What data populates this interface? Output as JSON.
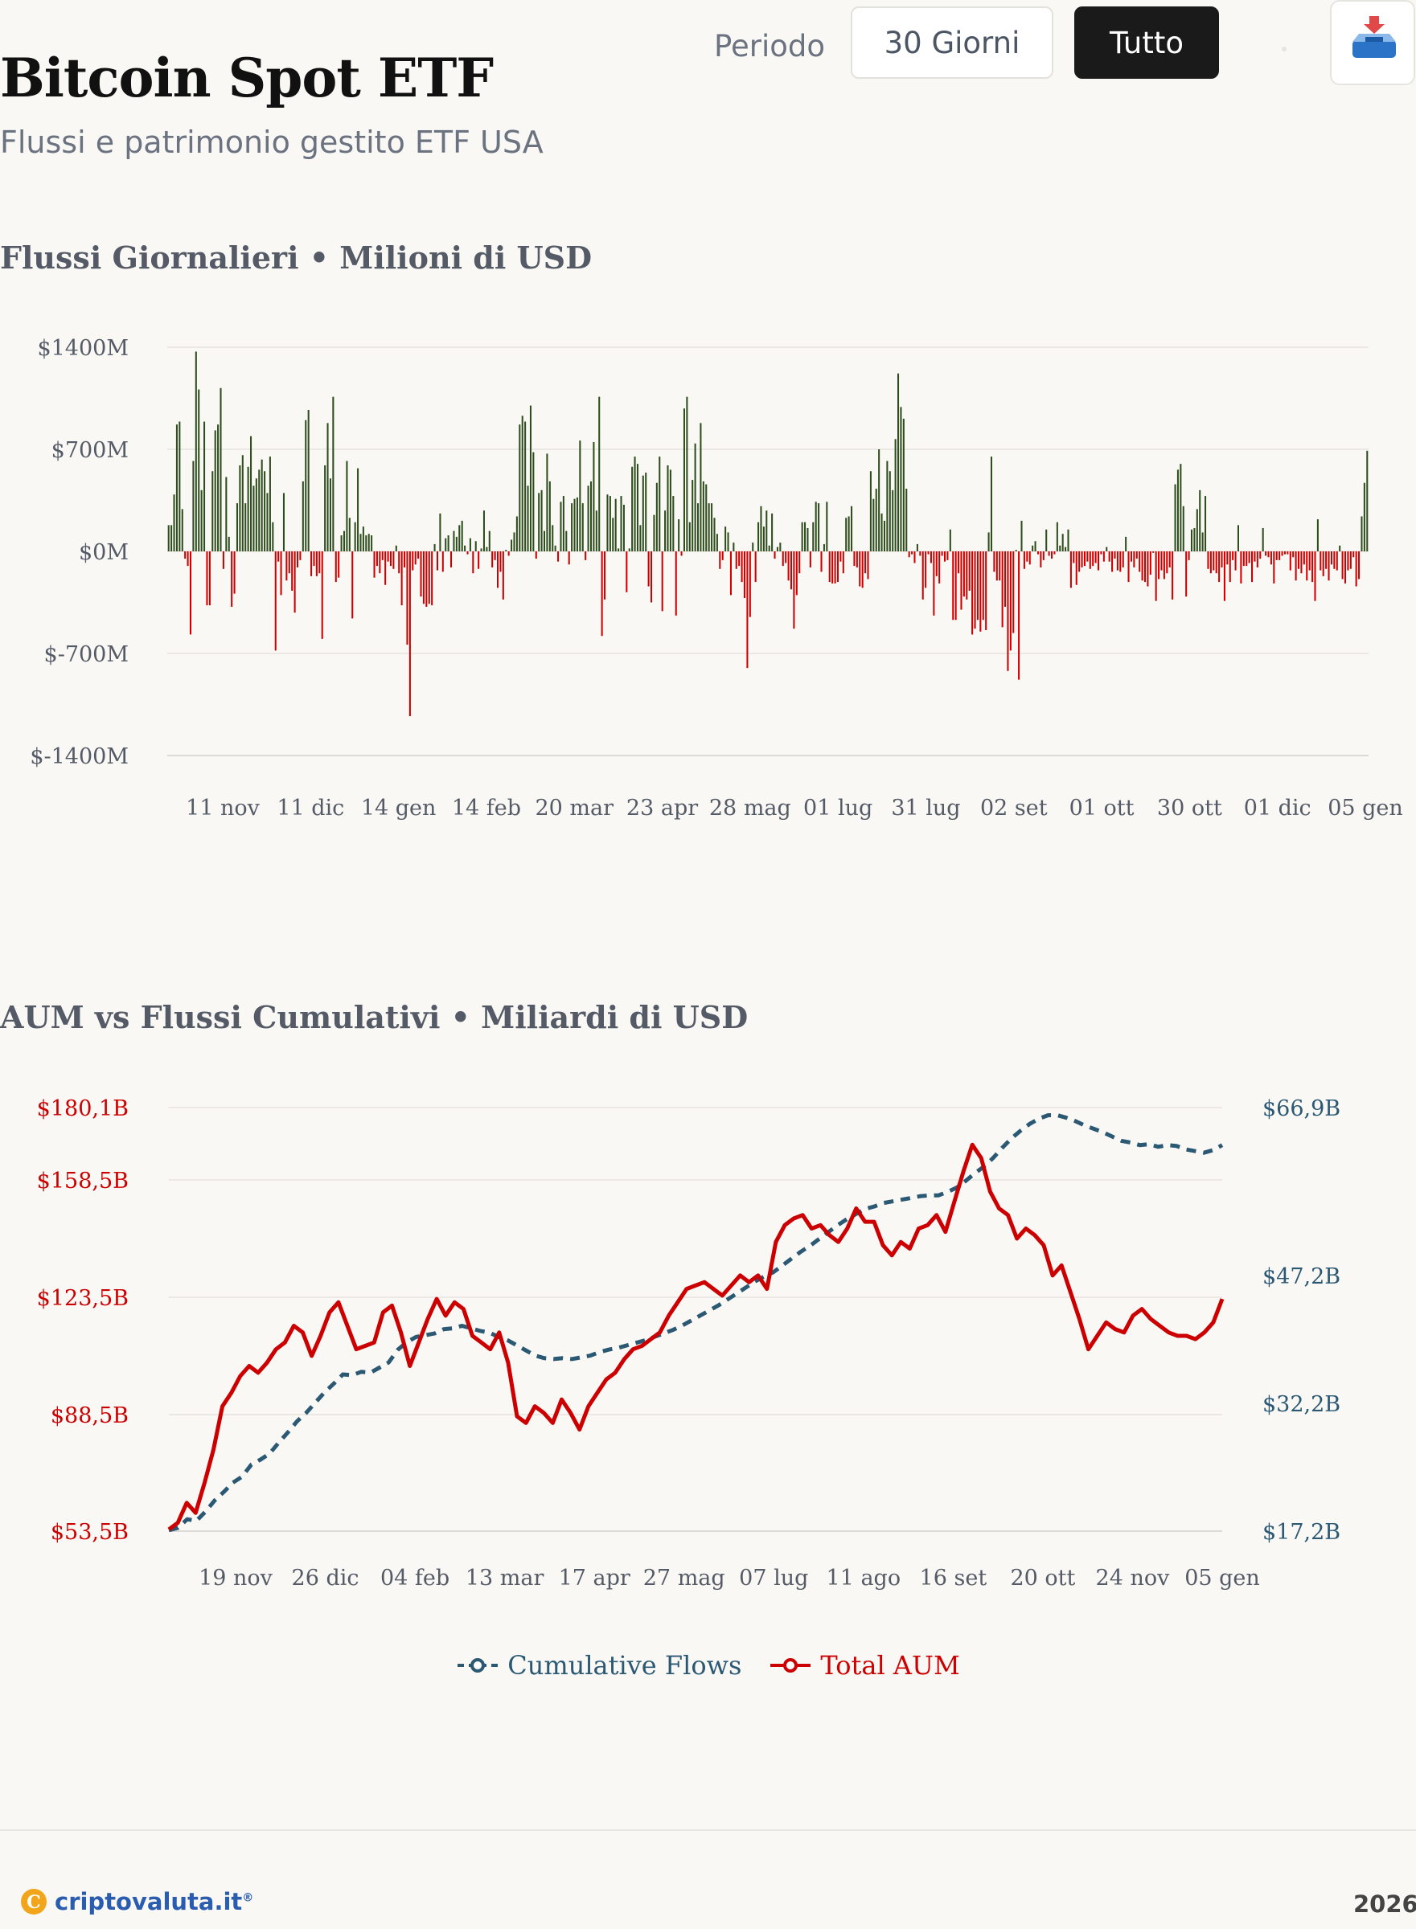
{
  "header": {
    "title": "Bitcoin Spot ETF",
    "subtitle": "Flussi e patrimonio gestito ETF USA",
    "period_label": "Periodo",
    "buttons": {
      "thirty_days": "30 Giorni",
      "all": "Tutto"
    },
    "selected_period": "Tutto"
  },
  "colors": {
    "inflow": "#2e4d1c",
    "outflow": "#cc0000",
    "aum": "#cc0000",
    "flows": "#2b5873",
    "background": "#f9f8f5"
  },
  "footer": {
    "brand": "criptovaluta.it",
    "year": "2026"
  },
  "chart_data": [
    {
      "type": "bar",
      "title": "Flussi Giornalieri • Milioni di USD",
      "ylim": [
        -1400,
        1400
      ],
      "yticks": [
        "$1400M",
        "$700M",
        "$0M",
        "$-700M",
        "$-1400M"
      ],
      "ytick_values": [
        1400,
        700,
        0,
        -700,
        -1400
      ],
      "xticks": [
        "11 nov",
        "11 dic",
        "14 gen",
        "14 feb",
        "20 mar",
        "23 apr",
        "28 mag",
        "01 lug",
        "31 lug",
        "02 set",
        "01 ott",
        "30 ott",
        "01 dic",
        "05 gen"
      ],
      "values": [
        180,
        180,
        390,
        870,
        890,
        290,
        -50,
        -100,
        -570,
        620,
        1370,
        1110,
        420,
        890,
        -370,
        -370,
        550,
        830,
        870,
        1120,
        -120,
        510,
        100,
        -380,
        -290,
        330,
        590,
        660,
        330,
        580,
        790,
        450,
        500,
        560,
        630,
        550,
        400,
        650,
        200,
        -680,
        -70,
        -300,
        400,
        -200,
        -150,
        -270,
        -420,
        -110,
        -60,
        480,
        900,
        970,
        -170,
        -100,
        -170,
        -150,
        -600,
        590,
        880,
        500,
        1060,
        -210,
        -180,
        110,
        140,
        620,
        230,
        -460,
        200,
        570,
        120,
        170,
        110,
        120,
        110,
        -180,
        -100,
        -150,
        -60,
        -230,
        -70,
        -100,
        -120,
        40,
        -150,
        -370,
        -110,
        -640,
        -1130,
        -130,
        -90,
        -50,
        -310,
        -360,
        -380,
        -360,
        -370,
        50,
        -130,
        260,
        -140,
        90,
        110,
        -110,
        140,
        100,
        180,
        210,
        40,
        -20,
        90,
        -150,
        70,
        -120,
        20,
        280,
        30,
        140,
        -110,
        -60,
        -250,
        -140,
        -330,
        10,
        -30,
        80,
        130,
        240,
        870,
        930,
        890,
        450,
        1000,
        680,
        -50,
        400,
        420,
        140,
        670,
        480,
        180,
        40,
        -70,
        340,
        380,
        140,
        -90,
        330,
        360,
        370,
        760,
        330,
        -60,
        450,
        480,
        750,
        280,
        1060,
        -580,
        -330,
        390,
        380,
        230,
        360,
        20,
        380,
        320,
        -280,
        20,
        580,
        650,
        600,
        180,
        520,
        540,
        -240,
        -350,
        250,
        470,
        650,
        -410,
        280,
        590,
        560,
        380,
        -440,
        220,
        -30,
        980,
        1060,
        200,
        490,
        740,
        330,
        880,
        480,
        460,
        330,
        330,
        230,
        120,
        -120,
        -60,
        170,
        130,
        -300,
        60,
        -120,
        -100,
        -210,
        -320,
        -800,
        -450,
        60,
        -210,
        200,
        310,
        170,
        280,
        40,
        260,
        -50,
        30,
        60,
        -100,
        -80,
        -200,
        -260,
        -530,
        -300,
        -150,
        200,
        200,
        160,
        -110,
        200,
        340,
        330,
        -140,
        50,
        340,
        -210,
        -220,
        -220,
        -210,
        -70,
        -150,
        230,
        240,
        310,
        -100,
        -110,
        -240,
        -250,
        -150,
        -190,
        550,
        360,
        430,
        700,
        260,
        210,
        620,
        550,
        420,
        770,
        1220,
        990,
        910,
        430,
        -40,
        -20,
        -80,
        50,
        -30,
        -330,
        -250,
        -20,
        -80,
        -440,
        -170,
        -220,
        -30,
        -70,
        -60,
        150,
        -470,
        -470,
        -150,
        -400,
        -310,
        -330,
        -270,
        -570,
        -530,
        -470,
        -550,
        -470,
        -540,
        130,
        650,
        -140,
        -200,
        -200,
        -520,
        -380,
        -820,
        -680,
        -560,
        10,
        -880,
        210,
        -120,
        -70,
        -90,
        40,
        70,
        -20,
        -110,
        -60,
        150,
        -30,
        -50,
        -20,
        200,
        40,
        120,
        30,
        150,
        -250,
        -80,
        -230,
        -140,
        -110,
        -100,
        -70,
        -120,
        -100,
        -80,
        -130,
        -20,
        -70,
        30,
        -70,
        -140,
        -50,
        -130,
        -140,
        -110,
        100,
        -210,
        -70,
        -110,
        -50,
        -140,
        -200,
        -210,
        -240,
        -160,
        -10,
        -340,
        -190,
        -130,
        -190,
        -150,
        -110,
        -330,
        460,
        560,
        600,
        310,
        -310,
        -60,
        150,
        160,
        290,
        420,
        130,
        380,
        -120,
        -150,
        -130,
        -150,
        -210,
        -110,
        -340,
        -90,
        -210,
        -60,
        -130,
        180,
        -220,
        -100,
        -100,
        -80,
        -210,
        -70,
        -110,
        -50,
        160,
        -30,
        -40,
        -90,
        -220,
        -60,
        -60,
        -30,
        -20,
        -20,
        -130,
        -40,
        -200,
        -120,
        -150,
        -90,
        -200,
        -130,
        -210,
        -340,
        220,
        -130,
        -170,
        -120,
        -200,
        -90,
        -120,
        -130,
        40,
        -190,
        -220,
        -130,
        -120,
        -40,
        -240,
        -190,
        240,
        470,
        690
      ]
    },
    {
      "type": "line",
      "title": "AUM vs Flussi Cumulativi • Miliardi di USD",
      "xticks": [
        "19 nov",
        "26 dic",
        "04 feb",
        "13 mar",
        "17 apr",
        "27 mag",
        "07 lug",
        "11 ago",
        "16 set",
        "20 ott",
        "24 nov",
        "05 gen"
      ],
      "y_left": {
        "ticks": [
          "$180,1B",
          "$158,5B",
          "$123,5B",
          "$88,5B",
          "$53,5B"
        ],
        "tick_values": [
          180.1,
          158.5,
          123.5,
          88.5,
          53.5
        ],
        "range": [
          53.5,
          180.1
        ]
      },
      "y_right": {
        "ticks": [
          "$66,9B",
          "$47,2B",
          "$32,2B",
          "$17,2B"
        ],
        "tick_values": [
          66.9,
          47.2,
          32.2,
          17.2
        ],
        "range": [
          17.2,
          66.9
        ]
      },
      "legend_position": "bottom-center",
      "series": [
        {
          "name": "Cumulative Flows",
          "axis": "right",
          "style": "dashed",
          "values": [
            17.3,
            17.6,
            18.6,
            18.4,
            19.5,
            20.8,
            21.8,
            22.9,
            23.6,
            25.0,
            25.6,
            26.3,
            27.6,
            28.8,
            30.1,
            31.1,
            32.3,
            33.5,
            34.5,
            35.6,
            35.5,
            35.9,
            35.8,
            36.4,
            37.0,
            38.5,
            39.4,
            40.0,
            40.2,
            40.4,
            40.9,
            41.0,
            41.3,
            41.0,
            40.7,
            40.5,
            40.0,
            39.6,
            39.0,
            38.4,
            37.8,
            37.5,
            37.4,
            37.5,
            37.4,
            37.6,
            37.8,
            38.2,
            38.5,
            38.7,
            39.0,
            39.3,
            39.6,
            40.0,
            40.4,
            40.8,
            41.3,
            41.9,
            42.5,
            43.1,
            43.7,
            44.4,
            45.1,
            45.8,
            46.5,
            47.1,
            47.6,
            48.4,
            49.2,
            50.0,
            50.7,
            51.5,
            52.3,
            53.1,
            53.8,
            54.4,
            55.0,
            55.3,
            55.7,
            55.9,
            56.1,
            56.3,
            56.5,
            56.6,
            56.6,
            57.0,
            57.5,
            58.3,
            59.2,
            60.0,
            61.0,
            62.2,
            63.3,
            64.2,
            65.0,
            65.6,
            66.0,
            66.0,
            65.7,
            65.3,
            64.8,
            64.4,
            64.0,
            63.5,
            63.0,
            62.8,
            62.5,
            62.6,
            62.3,
            62.5,
            62.4,
            62.0,
            61.8,
            61.6,
            61.9,
            62.5
          ]
        },
        {
          "name": "Total AUM",
          "axis": "left",
          "style": "solid",
          "values": [
            54,
            56,
            62,
            59,
            68,
            78,
            91,
            95,
            100,
            103,
            101,
            104,
            108,
            110,
            115,
            113,
            106,
            112,
            119,
            122,
            115,
            108,
            109,
            110,
            119,
            121,
            113,
            103,
            110,
            117,
            123,
            118,
            122,
            120,
            112,
            110,
            108,
            113,
            104,
            88,
            86,
            91,
            89,
            86,
            93,
            89,
            84,
            91,
            95,
            99,
            101,
            105,
            108,
            109,
            111,
            113,
            118,
            122,
            126,
            127,
            128,
            126,
            124,
            127,
            130,
            128,
            130,
            126,
            140,
            145,
            147,
            148,
            144,
            145,
            142,
            140,
            144,
            150,
            146,
            146,
            139,
            136,
            140,
            138,
            144,
            145,
            148,
            143,
            152,
            161,
            169,
            165,
            155,
            150,
            148,
            141,
            144,
            142,
            139,
            130,
            133,
            125,
            117,
            108,
            112,
            116,
            114,
            113,
            118,
            120,
            117,
            115,
            113,
            112,
            112,
            111,
            113,
            116,
            123
          ]
        }
      ]
    }
  ]
}
